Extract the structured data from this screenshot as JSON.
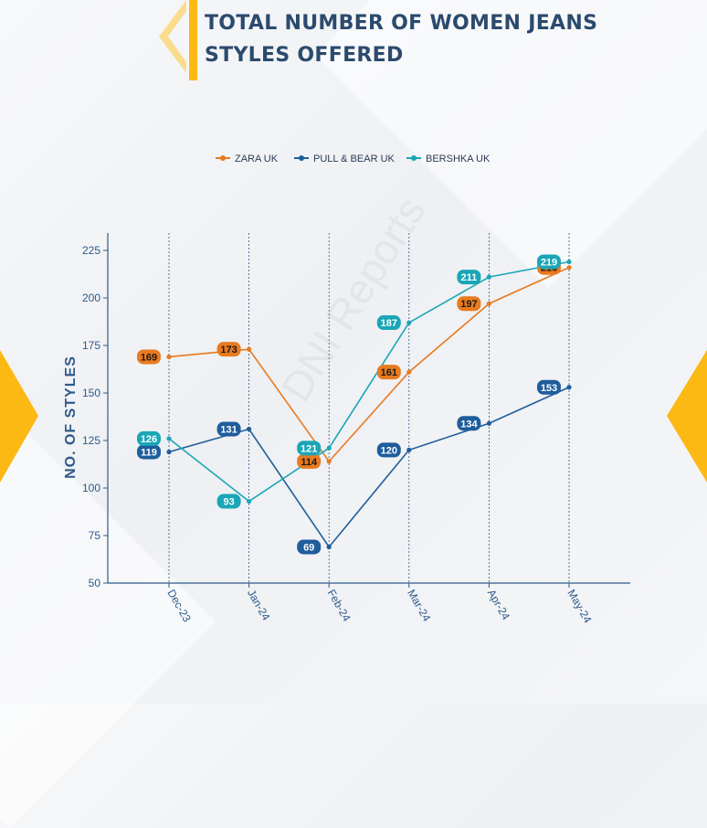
{
  "title": "TOTAL NUMBER OF WOMEN JEANS STYLES OFFERED",
  "watermark": "DNI Reports",
  "colors": {
    "title": "#2b4a6e",
    "accent": "#fdb913",
    "axis": "#2e5a8a"
  },
  "chart_data": {
    "type": "line",
    "x": [
      "Dec-23",
      "Jan-24",
      "Feb-24",
      "Mar-24",
      "Apr-24",
      "May-24"
    ],
    "ylabel": "NO. OF STYLES",
    "xlabel": "",
    "ylim": [
      50,
      235
    ],
    "yticks": [
      50,
      75,
      100,
      125,
      150,
      175,
      200,
      225
    ],
    "legend_position": "top-center",
    "vertical_grid": true,
    "series": [
      {
        "name": "ZARA UK",
        "color": "#e87a1f",
        "label_text": "#1a1a1a",
        "values": [
          169,
          173,
          114,
          161,
          197,
          216
        ]
      },
      {
        "name": "PULL & BEAR UK",
        "color": "#1f5d9b",
        "label_text": "#ffffff",
        "values": [
          119,
          131,
          69,
          120,
          134,
          153
        ]
      },
      {
        "name": "BERSHKA UK",
        "color": "#1aa6b7",
        "label_text": "#ffffff",
        "values": [
          126,
          93,
          121,
          187,
          211,
          219
        ]
      }
    ]
  }
}
